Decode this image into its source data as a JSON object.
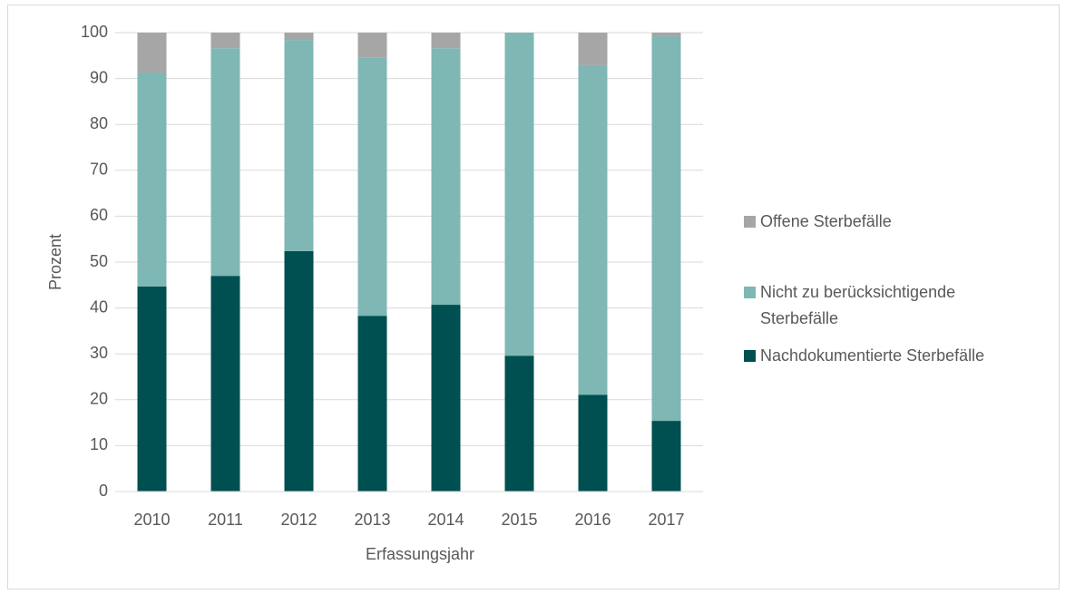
{
  "chart_data": {
    "type": "stacked_bar",
    "xlabel": "Erfassungsjahr",
    "ylabel": "Prozent",
    "categories": [
      "2010",
      "2011",
      "2012",
      "2013",
      "2014",
      "2015",
      "2016",
      "2017"
    ],
    "series": [
      {
        "name": "Nachdokumentierte Sterbefälle",
        "color": "#004f51",
        "values": [
          44.7,
          47.0,
          52.4,
          38.3,
          40.7,
          29.6,
          21.1,
          15.4
        ]
      },
      {
        "name": "Nicht zu berücksichtigende Sterbefälle",
        "color": "#7fb7b4",
        "values": [
          46.6,
          49.6,
          46.0,
          56.2,
          55.9,
          70.4,
          71.8,
          83.8
        ]
      },
      {
        "name": "Offene Sterbefälle",
        "color": "#a6a6a6",
        "values": [
          8.7,
          3.4,
          1.6,
          5.5,
          3.4,
          0,
          7.1,
          0.8
        ]
      }
    ],
    "ylim": [
      0,
      100
    ],
    "yticks": [
      0,
      10,
      20,
      30,
      40,
      50,
      60,
      70,
      80,
      90,
      100
    ],
    "grid": true
  }
}
